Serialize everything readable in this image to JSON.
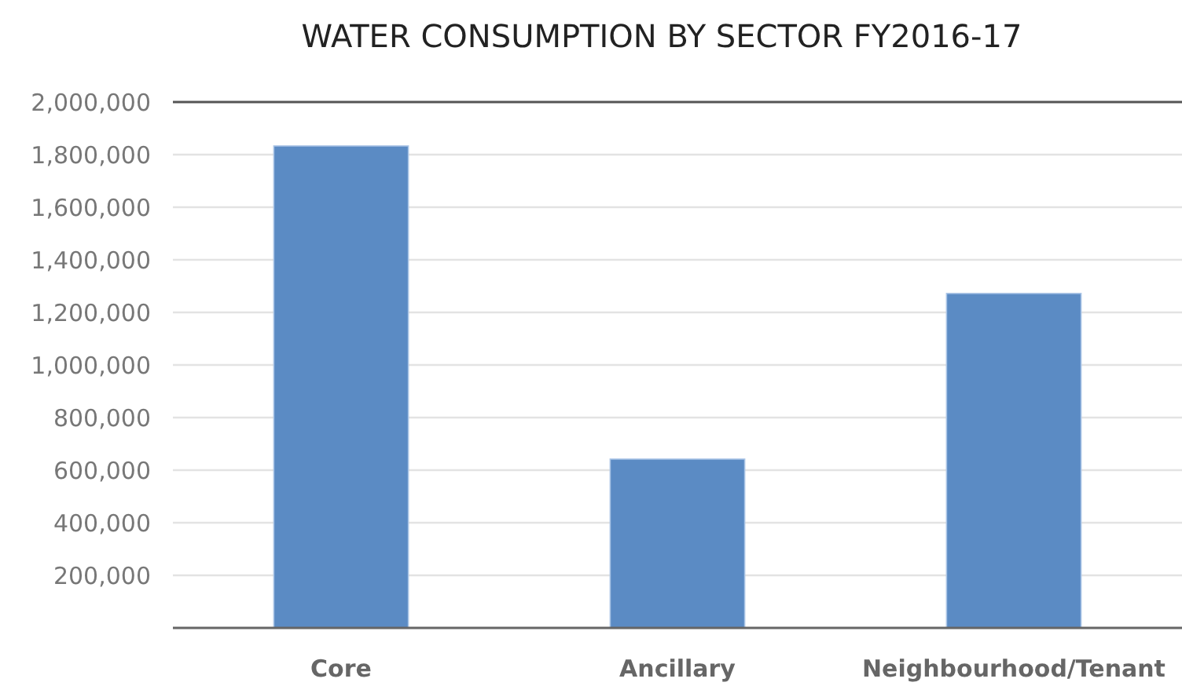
{
  "chart_data": {
    "type": "bar",
    "title": "WATER CONSUMPTION BY SECTOR FY2016-17",
    "categories": [
      "Core",
      "Ancillary",
      "Neighbourhood/Tenant"
    ],
    "values": [
      1833000,
      642000,
      1272000
    ],
    "color": "#5b8bc4",
    "ylim": [
      0,
      2000000
    ],
    "yticks": [
      {
        "value": 200000,
        "label": "200,000"
      },
      {
        "value": 400000,
        "label": "400,000"
      },
      {
        "value": 600000,
        "label": "600,000"
      },
      {
        "value": 800000,
        "label": "800,000"
      },
      {
        "value": 1000000,
        "label": "1,000,000"
      },
      {
        "value": 1200000,
        "label": "1,200,000"
      },
      {
        "value": 1400000,
        "label": "1,400,000"
      },
      {
        "value": 1600000,
        "label": "1,600,000"
      },
      {
        "value": 1800000,
        "label": "1,800,000"
      },
      {
        "value": 2000000,
        "label": "2,000,000"
      }
    ],
    "grid": "y"
  }
}
